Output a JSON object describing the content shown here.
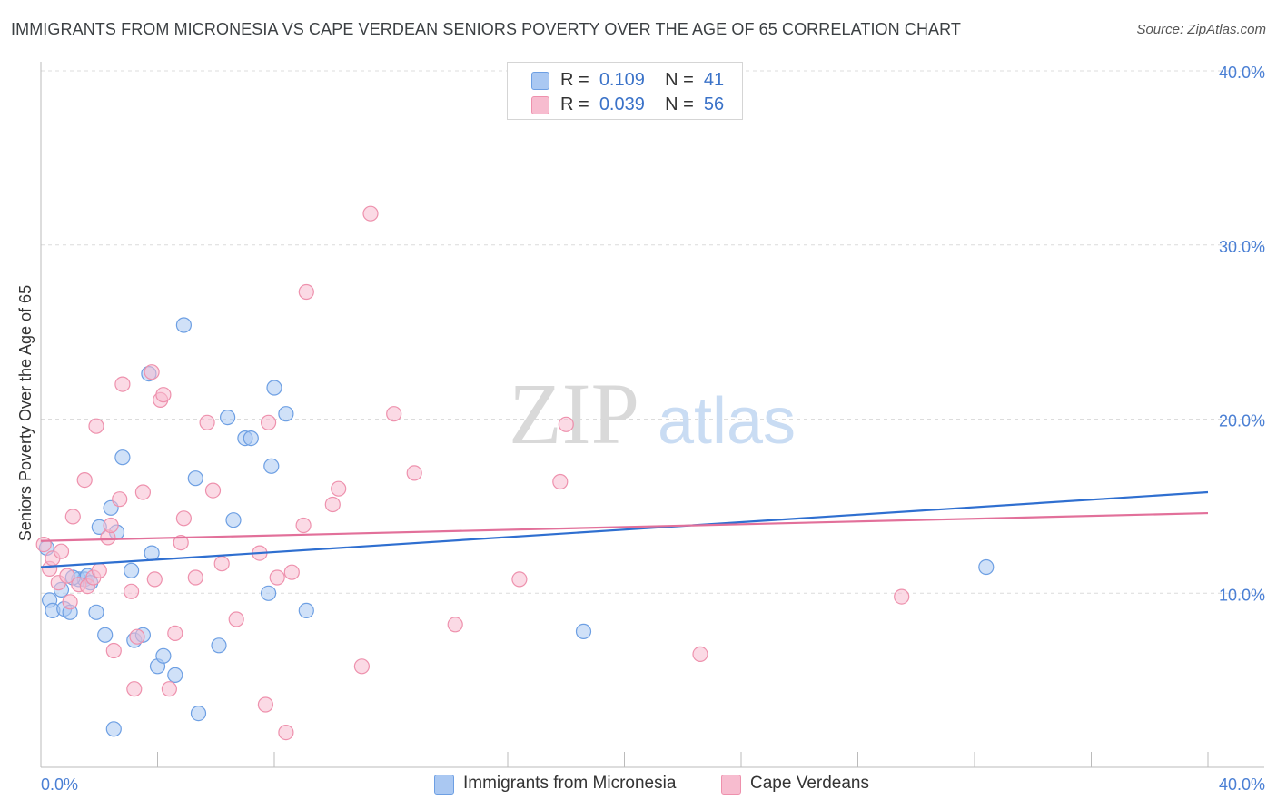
{
  "title": "IMMIGRANTS FROM MICRONESIA VS CAPE VERDEAN SENIORS POVERTY OVER THE AGE OF 65 CORRELATION CHART",
  "source": "Source: ZipAtlas.com",
  "watermark": {
    "zip": "ZIP",
    "atlas": "atlas"
  },
  "legend": {
    "rows": [
      {
        "r_label": "R =",
        "r_value": "0.109",
        "n_label": "N =",
        "n_value": "41",
        "color": "#aac8f2"
      },
      {
        "r_label": "R =",
        "r_value": "0.039",
        "n_label": "N =",
        "n_value": "56",
        "color": "#f7bccf"
      }
    ]
  },
  "bottom_legend": [
    {
      "label": "Immigrants from Micronesia",
      "color": "#aac8f2"
    },
    {
      "label": "Cape Verdeans",
      "color": "#f7bccf"
    }
  ],
  "chart_data": {
    "type": "scatter",
    "title": "IMMIGRANTS FROM MICRONESIA VS CAPE VERDEAN SENIORS POVERTY OVER THE AGE OF 65 CORRELATION CHART",
    "xlabel": "",
    "ylabel": "Seniors Poverty Over the Age of 65",
    "xlim": [
      0,
      40
    ],
    "ylim": [
      0,
      40
    ],
    "x_tick_labels": [
      "0.0%",
      "40.0%"
    ],
    "y_ticks": [
      10,
      20,
      30,
      40
    ],
    "y_tick_labels": [
      "10.0%",
      "20.0%",
      "30.0%",
      "40.0%"
    ],
    "grid": true,
    "series": [
      {
        "name": "Immigrants from Micronesia",
        "color": "#6d9fe3",
        "fill": "#aac8f2",
        "trend": {
          "x": [
            0,
            40
          ],
          "y": [
            11.5,
            15.8
          ],
          "color": "#2f6fd0"
        },
        "points": [
          [
            0.2,
            12.6
          ],
          [
            0.3,
            9.6
          ],
          [
            0.4,
            9.0
          ],
          [
            0.7,
            10.2
          ],
          [
            0.8,
            9.1
          ],
          [
            1.0,
            8.9
          ],
          [
            1.3,
            10.8
          ],
          [
            1.5,
            10.8
          ],
          [
            1.6,
            11.0
          ],
          [
            1.7,
            10.6
          ],
          [
            1.9,
            8.9
          ],
          [
            2.0,
            13.8
          ],
          [
            2.2,
            7.6
          ],
          [
            2.4,
            14.9
          ],
          [
            2.5,
            2.2
          ],
          [
            2.6,
            13.5
          ],
          [
            2.8,
            17.8
          ],
          [
            3.1,
            11.3
          ],
          [
            3.2,
            7.3
          ],
          [
            3.5,
            7.6
          ],
          [
            3.7,
            22.6
          ],
          [
            3.8,
            12.3
          ],
          [
            4.0,
            5.8
          ],
          [
            4.2,
            6.4
          ],
          [
            4.6,
            5.3
          ],
          [
            4.9,
            25.4
          ],
          [
            5.3,
            16.6
          ],
          [
            5.4,
            3.1
          ],
          [
            6.1,
            7.0
          ],
          [
            6.4,
            20.1
          ],
          [
            6.6,
            14.2
          ],
          [
            7.0,
            18.9
          ],
          [
            7.2,
            18.9
          ],
          [
            7.8,
            10.0
          ],
          [
            7.9,
            17.3
          ],
          [
            8.0,
            21.8
          ],
          [
            8.4,
            20.3
          ],
          [
            9.1,
            9.0
          ],
          [
            18.6,
            7.8
          ],
          [
            32.4,
            11.5
          ],
          [
            1.1,
            10.9
          ]
        ]
      },
      {
        "name": "Cape Verdeans",
        "color": "#ee91ad",
        "fill": "#f7bccf",
        "trend": {
          "x": [
            0,
            40
          ],
          "y": [
            13.0,
            14.6
          ],
          "color": "#e2709a"
        },
        "points": [
          [
            0.1,
            12.8
          ],
          [
            0.3,
            11.4
          ],
          [
            0.4,
            12.0
          ],
          [
            0.6,
            10.6
          ],
          [
            0.7,
            12.4
          ],
          [
            0.9,
            11.0
          ],
          [
            1.0,
            9.5
          ],
          [
            1.1,
            14.4
          ],
          [
            1.3,
            10.5
          ],
          [
            1.5,
            16.5
          ],
          [
            1.6,
            10.4
          ],
          [
            1.8,
            10.9
          ],
          [
            1.9,
            19.6
          ],
          [
            2.0,
            11.3
          ],
          [
            2.3,
            13.2
          ],
          [
            2.4,
            13.9
          ],
          [
            2.5,
            6.7
          ],
          [
            2.7,
            15.4
          ],
          [
            2.8,
            22.0
          ],
          [
            3.1,
            10.1
          ],
          [
            3.2,
            4.5
          ],
          [
            3.3,
            7.5
          ],
          [
            3.5,
            15.8
          ],
          [
            3.8,
            22.7
          ],
          [
            3.9,
            10.8
          ],
          [
            4.1,
            21.1
          ],
          [
            4.2,
            21.4
          ],
          [
            4.4,
            4.5
          ],
          [
            4.6,
            7.7
          ],
          [
            4.8,
            12.9
          ],
          [
            4.9,
            14.3
          ],
          [
            5.3,
            10.9
          ],
          [
            5.7,
            19.8
          ],
          [
            5.9,
            15.9
          ],
          [
            6.2,
            11.7
          ],
          [
            6.7,
            8.5
          ],
          [
            7.5,
            12.3
          ],
          [
            7.7,
            3.6
          ],
          [
            7.8,
            19.8
          ],
          [
            8.1,
            10.9
          ],
          [
            8.4,
            2.0
          ],
          [
            8.6,
            11.2
          ],
          [
            9.0,
            13.9
          ],
          [
            9.1,
            27.3
          ],
          [
            10.0,
            15.1
          ],
          [
            10.2,
            16.0
          ],
          [
            11.0,
            5.8
          ],
          [
            11.3,
            31.8
          ],
          [
            12.1,
            20.3
          ],
          [
            12.8,
            16.9
          ],
          [
            14.2,
            8.2
          ],
          [
            16.4,
            10.8
          ],
          [
            17.8,
            16.4
          ],
          [
            18.0,
            19.7
          ],
          [
            22.6,
            6.5
          ],
          [
            29.5,
            9.8
          ]
        ]
      }
    ]
  }
}
